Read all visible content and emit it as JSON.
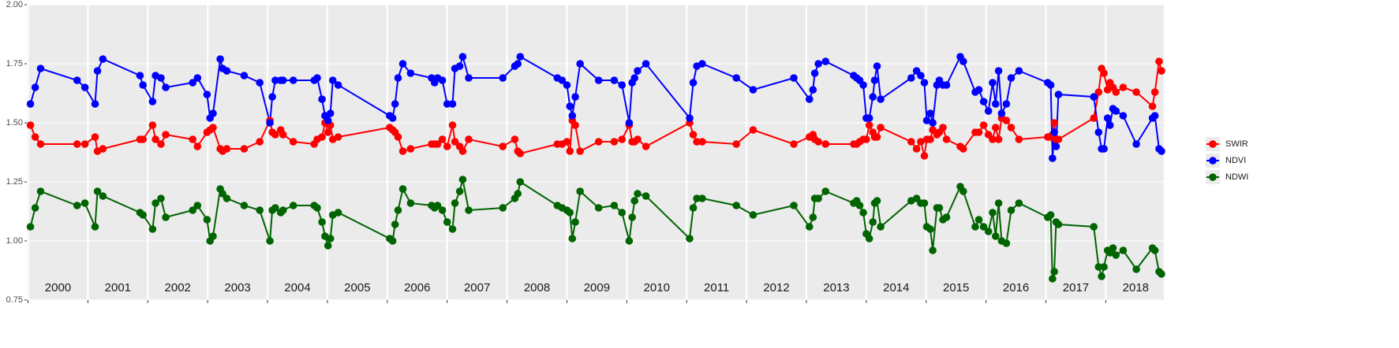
{
  "chart_data": {
    "type": "line",
    "x": [
      2000.04,
      2000.12,
      2000.21,
      2000.82,
      2000.95,
      2001.12,
      2001.16,
      2001.25,
      2001.87,
      2001.92,
      2002.08,
      2002.13,
      2002.22,
      2002.3,
      2002.75,
      2002.83,
      2002.99,
      2003.04,
      2003.09,
      2003.21,
      2003.25,
      2003.32,
      2003.61,
      2003.87,
      2004.04,
      2004.08,
      2004.13,
      2004.22,
      2004.26,
      2004.43,
      2004.78,
      2004.83,
      2004.91,
      2004.96,
      2005.01,
      2005.05,
      2005.09,
      2005.18,
      2006.04,
      2006.09,
      2006.13,
      2006.18,
      2006.26,
      2006.39,
      2006.74,
      2006.79,
      2006.84,
      2006.92,
      2007.0,
      2007.09,
      2007.13,
      2007.21,
      2007.26,
      2007.36,
      2007.93,
      2008.13,
      2008.18,
      2008.22,
      2008.84,
      2008.92,
      2009.0,
      2009.05,
      2009.09,
      2009.14,
      2009.22,
      2009.53,
      2009.79,
      2009.92,
      2010.04,
      2010.09,
      2010.13,
      2010.18,
      2010.32,
      2011.05,
      2011.11,
      2011.17,
      2011.26,
      2011.83,
      2012.11,
      2012.79,
      2013.05,
      2013.11,
      2013.14,
      2013.2,
      2013.32,
      2013.79,
      2013.84,
      2013.89,
      2013.95,
      2014.0,
      2014.05,
      2014.11,
      2014.14,
      2014.18,
      2014.24,
      2014.75,
      2014.84,
      2014.91,
      2014.97,
      2015.01,
      2015.07,
      2015.11,
      2015.18,
      2015.22,
      2015.28,
      2015.34,
      2015.57,
      2015.62,
      2015.82,
      2015.88,
      2015.96,
      2016.04,
      2016.11,
      2016.16,
      2016.21,
      2016.26,
      2016.34,
      2016.42,
      2016.55,
      2017.03,
      2017.08,
      2017.11,
      2017.14,
      2017.17,
      2017.21,
      2017.8,
      2017.88,
      2017.93,
      2017.97,
      2018.03,
      2018.07,
      2018.12,
      2018.17,
      2018.29,
      2018.51,
      2018.78,
      2018.82,
      2018.89,
      2018.93
    ],
    "series": [
      {
        "name": "SWIR",
        "color": "#ff0000",
        "values": [
          1.49,
          1.44,
          1.41,
          1.41,
          1.41,
          1.44,
          1.38,
          1.39,
          1.43,
          1.43,
          1.49,
          1.43,
          1.41,
          1.45,
          1.43,
          1.4,
          1.46,
          1.47,
          1.48,
          1.39,
          1.38,
          1.39,
          1.39,
          1.42,
          1.51,
          1.46,
          1.45,
          1.47,
          1.45,
          1.42,
          1.41,
          1.43,
          1.44,
          1.5,
          1.46,
          1.49,
          1.43,
          1.44,
          1.48,
          1.47,
          1.46,
          1.44,
          1.38,
          1.39,
          1.41,
          1.41,
          1.41,
          1.43,
          1.4,
          1.49,
          1.42,
          1.4,
          1.38,
          1.43,
          1.4,
          1.43,
          1.38,
          1.37,
          1.41,
          1.41,
          1.42,
          1.38,
          1.51,
          1.49,
          1.38,
          1.42,
          1.42,
          1.43,
          1.49,
          1.42,
          1.42,
          1.43,
          1.4,
          1.5,
          1.45,
          1.42,
          1.42,
          1.41,
          1.47,
          1.41,
          1.44,
          1.45,
          1.43,
          1.42,
          1.41,
          1.41,
          1.41,
          1.42,
          1.43,
          1.43,
          1.49,
          1.46,
          1.44,
          1.44,
          1.48,
          1.42,
          1.39,
          1.42,
          1.36,
          1.43,
          1.43,
          1.47,
          1.45,
          1.46,
          1.48,
          1.43,
          1.4,
          1.39,
          1.46,
          1.46,
          1.49,
          1.45,
          1.43,
          1.48,
          1.43,
          1.52,
          1.51,
          1.48,
          1.43,
          1.44,
          1.44,
          1.45,
          1.5,
          1.43,
          1.43,
          1.52,
          1.63,
          1.73,
          1.71,
          1.64,
          1.67,
          1.65,
          1.63,
          1.65,
          1.63,
          1.57,
          1.63,
          1.76,
          1.72
        ]
      },
      {
        "name": "NDVI",
        "color": "#0000ff",
        "values": [
          1.58,
          1.65,
          1.73,
          1.68,
          1.65,
          1.58,
          1.72,
          1.77,
          1.7,
          1.66,
          1.59,
          1.7,
          1.69,
          1.65,
          1.67,
          1.69,
          1.62,
          1.52,
          1.54,
          1.77,
          1.73,
          1.72,
          1.7,
          1.67,
          1.5,
          1.61,
          1.68,
          1.68,
          1.68,
          1.68,
          1.68,
          1.69,
          1.6,
          1.53,
          1.51,
          1.54,
          1.68,
          1.66,
          1.53,
          1.52,
          1.58,
          1.69,
          1.75,
          1.71,
          1.69,
          1.67,
          1.69,
          1.68,
          1.58,
          1.58,
          1.73,
          1.74,
          1.78,
          1.69,
          1.69,
          1.74,
          1.75,
          1.78,
          1.69,
          1.68,
          1.66,
          1.57,
          1.53,
          1.61,
          1.75,
          1.68,
          1.68,
          1.66,
          1.5,
          1.67,
          1.69,
          1.72,
          1.75,
          1.52,
          1.67,
          1.74,
          1.75,
          1.69,
          1.64,
          1.69,
          1.6,
          1.64,
          1.71,
          1.75,
          1.76,
          1.7,
          1.69,
          1.68,
          1.66,
          1.52,
          1.52,
          1.61,
          1.68,
          1.74,
          1.6,
          1.69,
          1.72,
          1.7,
          1.67,
          1.51,
          1.54,
          1.5,
          1.66,
          1.68,
          1.66,
          1.66,
          1.78,
          1.76,
          1.63,
          1.64,
          1.59,
          1.55,
          1.67,
          1.58,
          1.72,
          1.54,
          1.58,
          1.69,
          1.72,
          1.67,
          1.66,
          1.35,
          1.46,
          1.4,
          1.62,
          1.61,
          1.46,
          1.39,
          1.39,
          1.52,
          1.49,
          1.56,
          1.55,
          1.53,
          1.41,
          1.52,
          1.53,
          1.39,
          1.38
        ]
      },
      {
        "name": "NDWI",
        "color": "#006400",
        "values": [
          1.06,
          1.14,
          1.21,
          1.15,
          1.16,
          1.06,
          1.21,
          1.19,
          1.12,
          1.11,
          1.05,
          1.16,
          1.18,
          1.1,
          1.13,
          1.15,
          1.09,
          1.0,
          1.02,
          1.22,
          1.2,
          1.18,
          1.15,
          1.13,
          1.0,
          1.13,
          1.14,
          1.12,
          1.13,
          1.15,
          1.15,
          1.14,
          1.08,
          1.02,
          0.98,
          1.01,
          1.11,
          1.12,
          1.01,
          1.0,
          1.07,
          1.13,
          1.22,
          1.16,
          1.15,
          1.14,
          1.15,
          1.13,
          1.08,
          1.05,
          1.16,
          1.21,
          1.26,
          1.13,
          1.14,
          1.18,
          1.2,
          1.25,
          1.15,
          1.14,
          1.13,
          1.12,
          1.01,
          1.08,
          1.21,
          1.14,
          1.15,
          1.12,
          1.0,
          1.1,
          1.17,
          1.2,
          1.19,
          1.01,
          1.14,
          1.18,
          1.18,
          1.15,
          1.11,
          1.15,
          1.06,
          1.1,
          1.18,
          1.18,
          1.21,
          1.16,
          1.17,
          1.15,
          1.12,
          1.03,
          1.01,
          1.08,
          1.16,
          1.17,
          1.06,
          1.17,
          1.18,
          1.16,
          1.16,
          1.06,
          1.05,
          0.96,
          1.14,
          1.14,
          1.09,
          1.1,
          1.23,
          1.21,
          1.06,
          1.09,
          1.06,
          1.04,
          1.12,
          1.02,
          1.16,
          1.0,
          0.99,
          1.13,
          1.16,
          1.1,
          1.11,
          0.84,
          0.87,
          1.08,
          1.07,
          1.06,
          0.89,
          0.85,
          0.89,
          0.96,
          0.95,
          0.97,
          0.94,
          0.96,
          0.88,
          0.97,
          0.96,
          0.87,
          0.86
        ]
      }
    ],
    "xlim": [
      1999.98,
      2018.97
    ],
    "xticks": [
      2000,
      2001,
      2002,
      2003,
      2004,
      2005,
      2006,
      2007,
      2008,
      2009,
      2010,
      2011,
      2012,
      2013,
      2014,
      2015,
      2016,
      2017,
      2018
    ],
    "ylim": [
      0.75,
      2.0
    ],
    "yticks": [
      {
        "value": 0.75,
        "label": "0.75"
      },
      {
        "value": 1.0,
        "label": "1.00"
      },
      {
        "value": 1.25,
        "label": "1.25"
      },
      {
        "value": 1.5,
        "label": "1.50"
      },
      {
        "value": 1.75,
        "label": "1.75"
      },
      {
        "value": 2.0,
        "label": "2.00"
      }
    ],
    "grid": true,
    "legend": "right"
  }
}
